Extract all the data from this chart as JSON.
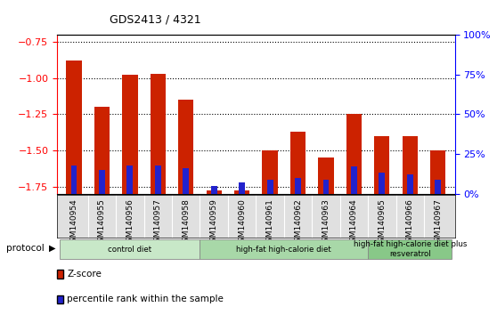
{
  "title": "GDS2413 / 4321",
  "samples": [
    "GSM140954",
    "GSM140955",
    "GSM140956",
    "GSM140957",
    "GSM140958",
    "GSM140959",
    "GSM140960",
    "GSM140961",
    "GSM140962",
    "GSM140963",
    "GSM140964",
    "GSM140965",
    "GSM140966",
    "GSM140967"
  ],
  "zscore": [
    -0.88,
    -1.2,
    -0.98,
    -0.97,
    -1.15,
    -1.78,
    -1.78,
    -1.5,
    -1.37,
    -1.55,
    -1.25,
    -1.4,
    -1.4,
    -1.5
  ],
  "percentile": [
    18,
    15,
    18,
    18,
    16,
    5,
    7,
    9,
    10,
    9,
    17,
    13,
    12,
    9
  ],
  "groups": [
    {
      "label": "control diet",
      "start": 0,
      "end": 5,
      "color": "#c8e8c8"
    },
    {
      "label": "high-fat high-calorie diet",
      "start": 5,
      "end": 11,
      "color": "#a8d8a8"
    },
    {
      "label": "high-fat high-calorie diet plus\nresveratrol",
      "start": 11,
      "end": 14,
      "color": "#88c888"
    }
  ],
  "bar_color_red": "#cc2200",
  "bar_color_blue": "#2222cc",
  "ylim_left": [
    -1.8,
    -0.7
  ],
  "ylim_right": [
    0,
    100
  ],
  "yticks_left": [
    -1.75,
    -1.5,
    -1.25,
    -1.0,
    -0.75
  ],
  "yticks_right": [
    0,
    25,
    50,
    75,
    100
  ],
  "protocol_label": "protocol",
  "legend_zscore": "Z-score",
  "legend_percentile": "percentile rank within the sample",
  "plot_bg_color": "#ffffff",
  "bar_width": 0.55
}
